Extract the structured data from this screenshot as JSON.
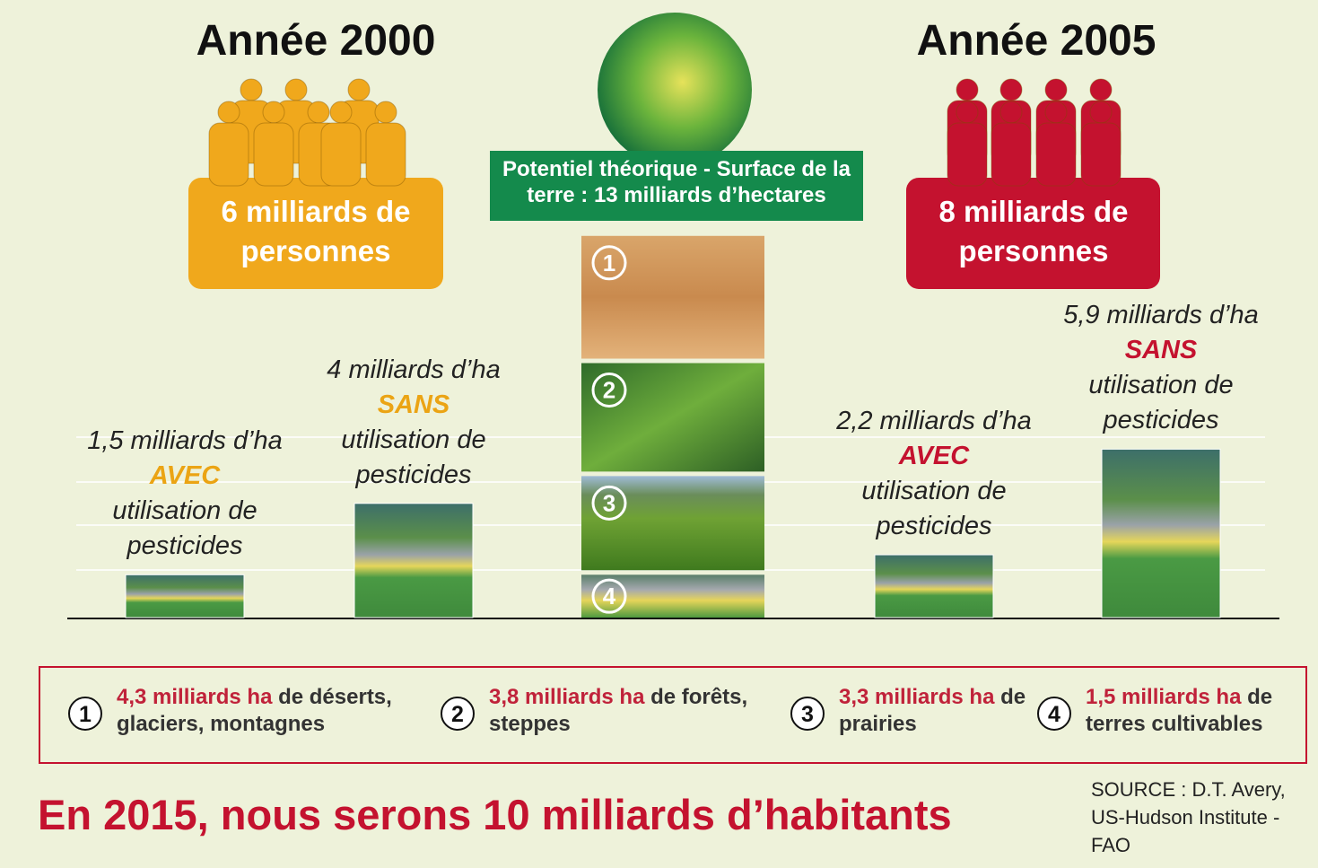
{
  "year_2000": {
    "title": "Année 2000",
    "people": "6 milliards de personnes"
  },
  "year_2005": {
    "title": "Année 2005",
    "people": "8 milliards de personnes"
  },
  "potential": "Potentiel théorique - Surface de la terre : 13 milliards d’hectares",
  "bars": [
    {
      "amount": "1,5 milliards d’ha",
      "value": 1.5,
      "keyword": "AVEC",
      "rest": "utilisation de pesticides",
      "color": "#eba414"
    },
    {
      "amount": "4 milliards d’ha",
      "value": 4,
      "keyword": "SANS",
      "rest": "utilisation de pesticides",
      "color": "#eba414"
    },
    {
      "amount": "2,2 milliards d’ha",
      "value": 2.2,
      "keyword": "AVEC",
      "rest": "utilisation de pesticides",
      "color": "#c4122f"
    },
    {
      "amount": "5,9 milliards d’ha",
      "value": 5.9,
      "keyword": "SANS",
      "rest": "utilisation de pesticides",
      "color": "#c4122f"
    }
  ],
  "stack": [
    {
      "number": "1",
      "value": 4.3,
      "amount": "4,3 milliards ha",
      "text": "de déserts, glaciers, montagnes"
    },
    {
      "number": "2",
      "value": 3.8,
      "amount": "3,8 milliards ha",
      "text": "de forêts, steppes"
    },
    {
      "number": "3",
      "value": 3.3,
      "amount": "3,3 milliards ha",
      "text": "de prairies"
    },
    {
      "number": "4",
      "value": 1.5,
      "amount": "1,5 milliards ha",
      "text": "de terres cultivables"
    }
  ],
  "headline": "En 2015, nous serons 10 milliards d’habitants",
  "source": "SOURCE : D.T. Avery, US-Hudson Institute - FAO"
}
